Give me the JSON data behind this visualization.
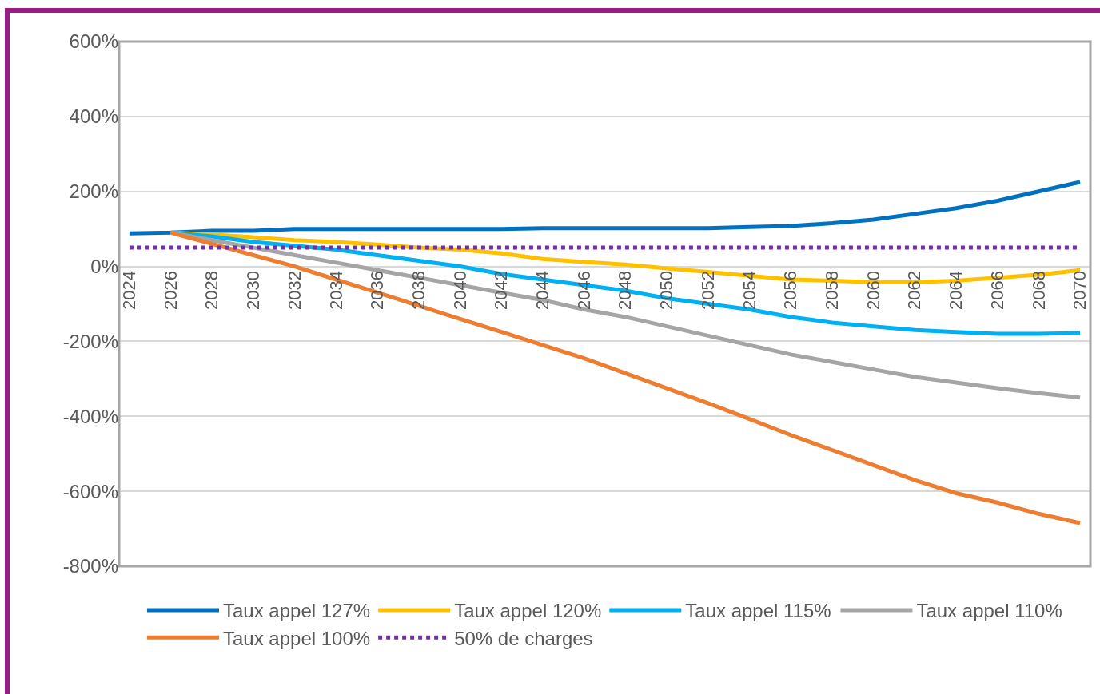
{
  "chart_data": {
    "type": "line",
    "x": [
      2024,
      2026,
      2028,
      2030,
      2032,
      2034,
      2036,
      2038,
      2040,
      2042,
      2044,
      2046,
      2048,
      2050,
      2052,
      2054,
      2056,
      2058,
      2060,
      2062,
      2064,
      2066,
      2068,
      2070
    ],
    "xlim": [
      2023.5,
      2070.5
    ],
    "xticks": [
      2024,
      2026,
      2028,
      2030,
      2032,
      2034,
      2036,
      2038,
      2040,
      2042,
      2044,
      2046,
      2048,
      2050,
      2052,
      2054,
      2056,
      2058,
      2060,
      2062,
      2064,
      2066,
      2068,
      2070
    ],
    "ylim": [
      -800,
      600
    ],
    "yticks": [
      {
        "value": -800,
        "label": "-800%"
      },
      {
        "value": -600,
        "label": "-600%"
      },
      {
        "value": -400,
        "label": "-400%"
      },
      {
        "value": -200,
        "label": "-200%"
      },
      {
        "value": 0,
        "label": "0%"
      },
      {
        "value": 200,
        "label": "200%"
      },
      {
        "value": 400,
        "label": "400%"
      },
      {
        "value": 600,
        "label": "600%"
      }
    ],
    "grid": "y",
    "legend": "bottom",
    "marker": "none",
    "series": [
      {
        "name": "Taux appel 127%",
        "color": "#0070c0",
        "line_style": "solid",
        "values": [
          88,
          90,
          95,
          95,
          100,
          100,
          100,
          100,
          100,
          100,
          102,
          102,
          102,
          102,
          102,
          105,
          108,
          115,
          125,
          140,
          155,
          175,
          200,
          225
        ]
      },
      {
        "name": "Taux appel 120%",
        "color": "#ffc000",
        "line_style": "solid",
        "values": [
          null,
          90,
          85,
          78,
          70,
          65,
          58,
          50,
          45,
          35,
          20,
          12,
          5,
          -5,
          -15,
          -25,
          -35,
          -38,
          -42,
          -42,
          -38,
          -30,
          -22,
          -10
        ]
      },
      {
        "name": "Taux appel 115%",
        "color": "#00b0f0",
        "line_style": "solid",
        "values": [
          null,
          90,
          80,
          65,
          55,
          45,
          30,
          15,
          0,
          -20,
          -35,
          -50,
          -65,
          -85,
          -100,
          -115,
          -135,
          -150,
          -160,
          -170,
          -175,
          -180,
          -180,
          -178
        ]
      },
      {
        "name": "Taux appel 110%",
        "color": "#a5a5a5",
        "line_style": "solid",
        "values": [
          null,
          90,
          70,
          50,
          30,
          10,
          -10,
          -30,
          -50,
          -70,
          -90,
          -115,
          -135,
          -160,
          -185,
          -210,
          -235,
          -255,
          -275,
          -295,
          -310,
          -325,
          -338,
          -350
        ]
      },
      {
        "name": "Taux appel 100%",
        "color": "#ed7d31",
        "line_style": "solid",
        "values": [
          null,
          90,
          60,
          30,
          0,
          -35,
          -70,
          -105,
          -140,
          -175,
          -210,
          -245,
          -285,
          -325,
          -365,
          -407,
          -450,
          -490,
          -530,
          -570,
          -605,
          -630,
          -660,
          -685
        ]
      },
      {
        "name": "50% de charges",
        "color": "#7030a0",
        "line_style": "dotted",
        "values": [
          50,
          50,
          50,
          50,
          50,
          50,
          50,
          50,
          50,
          50,
          50,
          50,
          50,
          50,
          50,
          50,
          50,
          50,
          50,
          50,
          50,
          50,
          50,
          50
        ]
      }
    ]
  }
}
